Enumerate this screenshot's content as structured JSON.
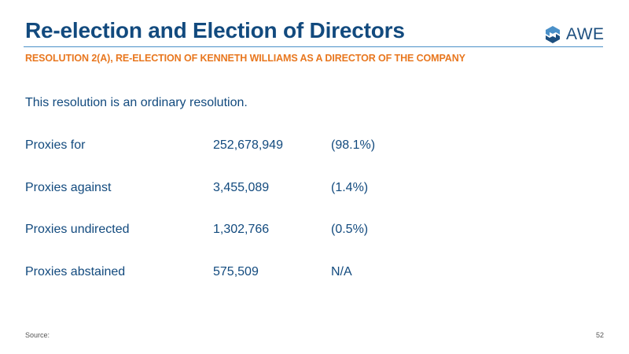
{
  "header": {
    "title": "Re-election and Election of Directors",
    "subtitle": "RESOLUTION 2(A), RE-ELECTION OF KENNETH WILLIAMS AS A DIRECTOR OF THE COMPANY",
    "logo_text": "AWE",
    "logo_icon": "awe-logo-icon"
  },
  "body": {
    "intro": "This resolution is an ordinary resolution.",
    "rows": [
      {
        "label": "Proxies for",
        "count": "252,678,949",
        "pct": "(98.1%)"
      },
      {
        "label": "Proxies against",
        "count": "3,455,089",
        "pct": "(1.4%)"
      },
      {
        "label": "Proxies undirected",
        "count": "1,302,766",
        "pct": "(0.5%)"
      },
      {
        "label": "Proxies abstained",
        "count": "575,509",
        "pct": "N/A"
      }
    ]
  },
  "footer": {
    "source": "Source:",
    "page_number": "52"
  },
  "colors": {
    "title": "#124a7e",
    "subtitle": "#e8771f",
    "rule": "#4a90c8",
    "logo_light": "#4a90c8",
    "logo_dark": "#1d4f7f"
  }
}
